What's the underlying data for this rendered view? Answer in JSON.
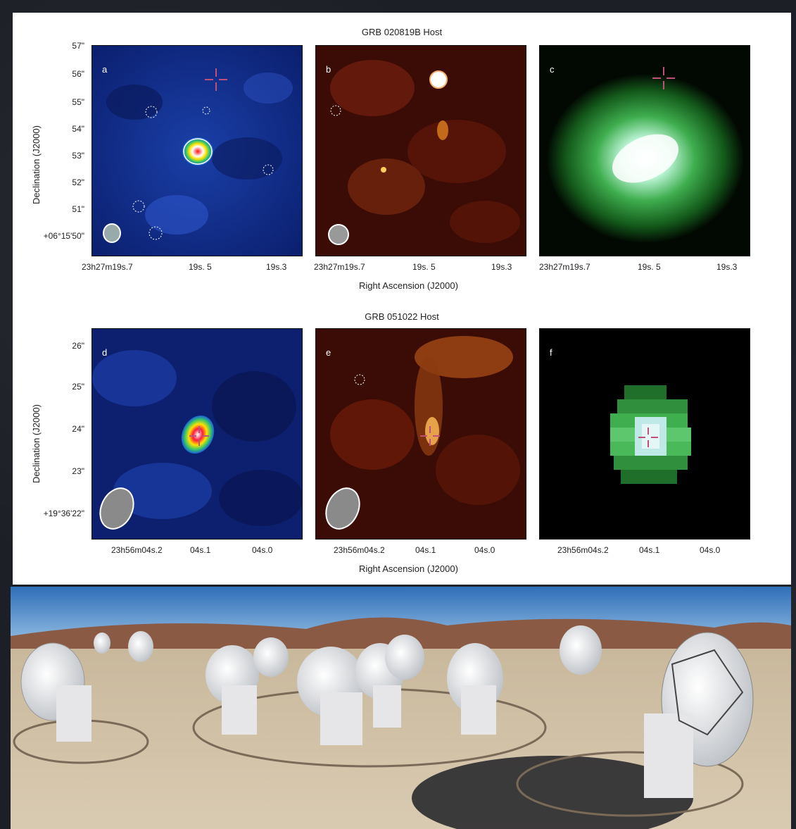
{
  "top_row": {
    "title": "GRB 020819B Host",
    "xlabel": "Right Ascension (J2000)",
    "ylabel": "Declination (J2000)",
    "yticks": [
      "57\"",
      "56\"",
      "55\"",
      "54\"",
      "53\"",
      "52\"",
      "51\"",
      "+06°15'50\""
    ],
    "xticks": [
      "23h27m19s.7",
      "19s. 5",
      "19s.3"
    ],
    "panels": [
      {
        "letter": "a",
        "colormap": "blue"
      },
      {
        "letter": "b",
        "colormap": "red"
      },
      {
        "letter": "c",
        "colormap": "green"
      }
    ]
  },
  "bottom_row": {
    "title": "GRB 051022 Host",
    "xlabel": "Right Ascension (J2000)",
    "ylabel": "Declination (J2000)",
    "yticks": [
      "26\"",
      "25\"",
      "24\"",
      "23\"",
      "+19°36'22\""
    ],
    "xticks": [
      "23h56m04s.2",
      "04s.1",
      "04s.0"
    ],
    "panels": [
      {
        "letter": "d",
        "colormap": "blue"
      },
      {
        "letter": "e",
        "colormap": "red"
      },
      {
        "letter": "f",
        "colormap": "green"
      }
    ]
  },
  "photo": {
    "subject": "alma-antenna-array"
  }
}
